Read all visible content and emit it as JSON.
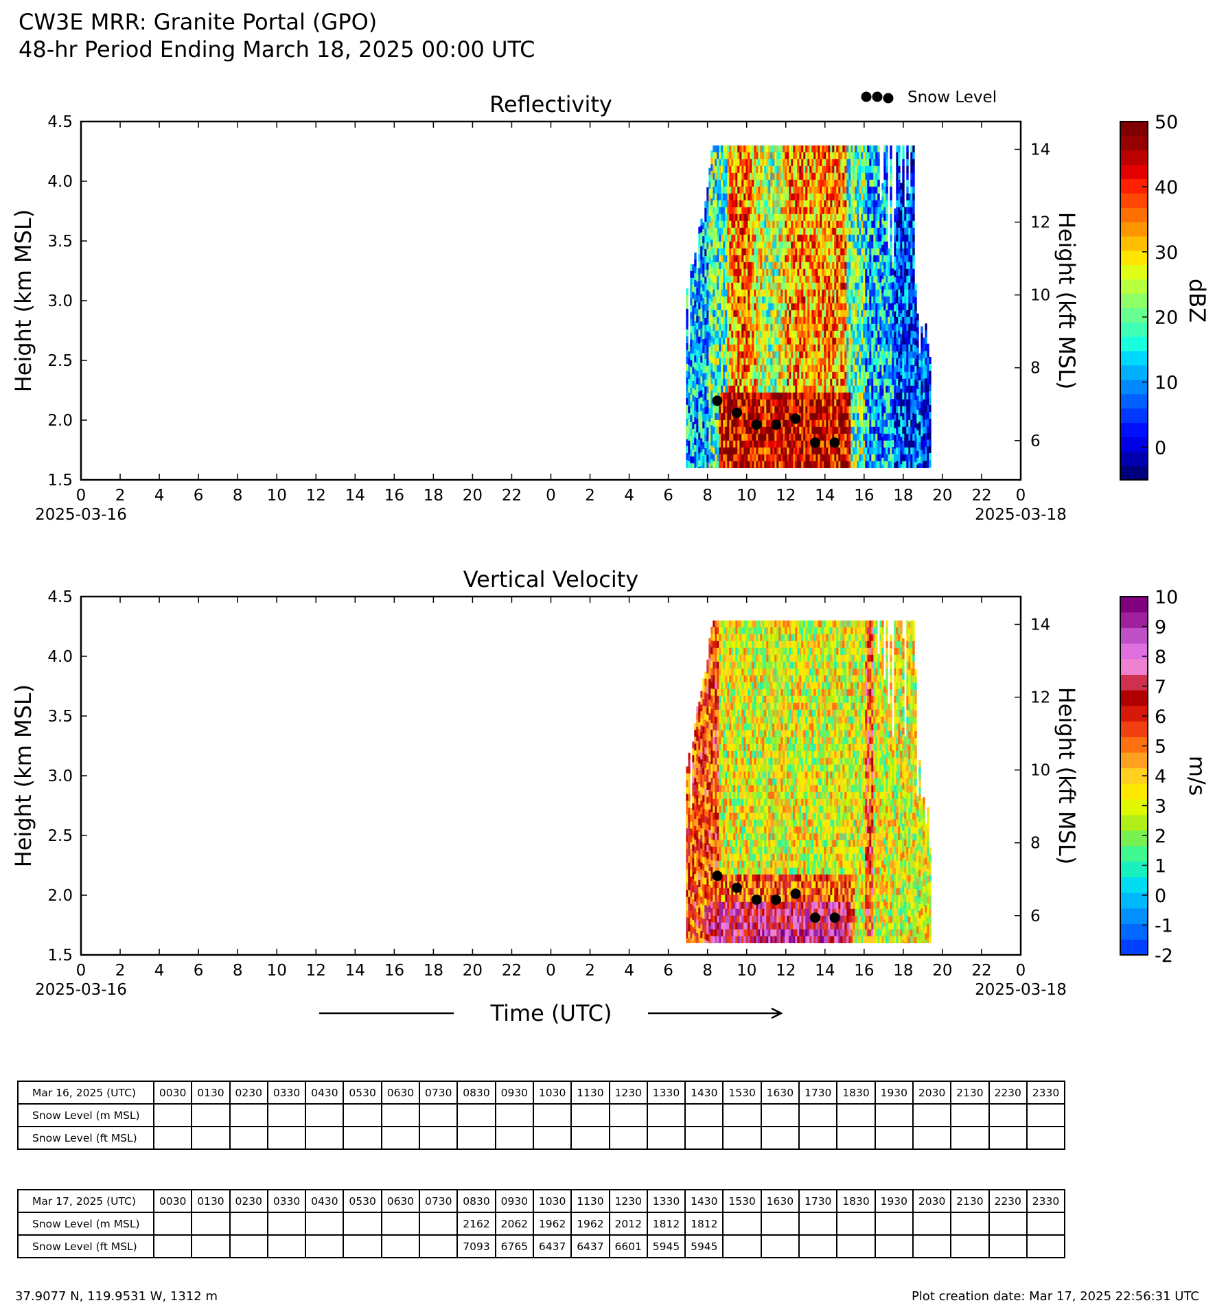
{
  "figure": {
    "title_line1": "CW3E MRR: Granite Portal (GPO)",
    "title_line2": "48-hr Period Ending March 18, 2025 00:00 UTC",
    "x_label": "Time (UTC)"
  },
  "chart_data": [
    {
      "type": "heatmap",
      "title": "Reflectivity",
      "xlabel": "",
      "ylabel": "Height (km MSL)",
      "ylabel_right": "Height (kft MSL)",
      "xlim": [
        0,
        48
      ],
      "ylim": [
        1.5,
        4.5
      ],
      "y_ticks": [
        "1.5",
        "2.0",
        "2.5",
        "3.0",
        "3.5",
        "4.0",
        "4.5"
      ],
      "y_right_ticks": [
        "6",
        "8",
        "10",
        "12",
        "14"
      ],
      "x_ticks": [
        "0",
        "2",
        "4",
        "6",
        "8",
        "10",
        "12",
        "14",
        "16",
        "18",
        "20",
        "22",
        "0",
        "2",
        "4",
        "6",
        "8",
        "10",
        "12",
        "14",
        "16",
        "18",
        "20",
        "22",
        "0"
      ],
      "x_date_start": "2025-03-16",
      "x_date_end": "2025-03-18",
      "colorbar_label": "dBZ",
      "colorbar_range": [
        -5,
        50
      ],
      "colorbar_ticks": [
        "0",
        "10",
        "20",
        "30",
        "40",
        "50"
      ],
      "colors": [
        "#00007f",
        "#0000b2",
        "#0000e5",
        "#0010ff",
        "#0038ff",
        "#0060ff",
        "#0088ff",
        "#00b0ff",
        "#00d8ff",
        "#17ffdf",
        "#3fffb7",
        "#67ff8f",
        "#8fff67",
        "#b7ff3f",
        "#dfff17",
        "#ffe500",
        "#ffbe00",
        "#ff9600",
        "#ff6f00",
        "#ff4700",
        "#ff2000",
        "#e50000",
        "#bd0000",
        "#960000",
        "#7f0000"
      ],
      "data_extent": {
        "x_start_hours": 30.9,
        "x_end_hours": 43.4,
        "y_top_km": 4.3,
        "y_bottom_km": 1.6
      },
      "legend": {
        "label": "Snow Level",
        "position": "top-right"
      },
      "snow_level": {
        "hours": [
          32.5,
          33.5,
          34.5,
          35.5,
          36.5,
          37.5,
          38.5
        ],
        "km": [
          2.162,
          2.062,
          1.962,
          1.962,
          2.012,
          1.812,
          1.812
        ]
      }
    },
    {
      "type": "heatmap",
      "title": "Vertical Velocity",
      "xlabel": "Time (UTC)",
      "ylabel": "Height (km MSL)",
      "ylabel_right": "Height (kft MSL)",
      "xlim": [
        0,
        48
      ],
      "ylim": [
        1.5,
        4.5
      ],
      "y_ticks": [
        "1.5",
        "2.0",
        "2.5",
        "3.0",
        "3.5",
        "4.0",
        "4.5"
      ],
      "y_right_ticks": [
        "6",
        "8",
        "10",
        "12",
        "14"
      ],
      "x_ticks": [
        "0",
        "2",
        "4",
        "6",
        "8",
        "10",
        "12",
        "14",
        "16",
        "18",
        "20",
        "22",
        "0",
        "2",
        "4",
        "6",
        "8",
        "10",
        "12",
        "14",
        "16",
        "18",
        "20",
        "22",
        "0"
      ],
      "x_date_start": "2025-03-16",
      "x_date_end": "2025-03-18",
      "colorbar_label": "m/s",
      "colorbar_range": [
        -2,
        10
      ],
      "colorbar_ticks": [
        "-2",
        "-1",
        "0",
        "1",
        "2",
        "3",
        "4",
        "5",
        "6",
        "7",
        "8",
        "9",
        "10"
      ],
      "colors": [
        "#0040ff",
        "#0068ff",
        "#0090ff",
        "#00b8ff",
        "#00dcf0",
        "#18f0c0",
        "#40f890",
        "#78f050",
        "#b0f018",
        "#e0f800",
        "#ffe800",
        "#ffd020",
        "#ffa020",
        "#ff7010",
        "#f04010",
        "#d81808",
        "#b00000",
        "#d03050",
        "#f080d0",
        "#e070e0",
        "#c050c8",
        "#a020a0",
        "#800080"
      ],
      "data_extent": {
        "x_start_hours": 30.9,
        "x_end_hours": 43.4,
        "y_top_km": 4.3,
        "y_bottom_km": 1.6
      },
      "snow_level": {
        "hours": [
          32.5,
          33.5,
          34.5,
          35.5,
          36.5,
          37.5,
          38.5
        ],
        "km": [
          2.162,
          2.062,
          1.962,
          1.962,
          2.012,
          1.812,
          1.812
        ]
      }
    }
  ],
  "tables": [
    {
      "date_label": "Mar 16, 2025 (UTC)",
      "times": [
        "0030",
        "0130",
        "0230",
        "0330",
        "0430",
        "0530",
        "0630",
        "0730",
        "0830",
        "0930",
        "1030",
        "1130",
        "1230",
        "1330",
        "1430",
        "1530",
        "1630",
        "1730",
        "1830",
        "1930",
        "2030",
        "2130",
        "2230",
        "2330"
      ],
      "row_m_label": "Snow Level (m MSL)",
      "row_ft_label": "Snow Level (ft MSL)",
      "m_values": [
        "",
        "",
        "",
        "",
        "",
        "",
        "",
        "",
        "",
        "",
        "",
        "",
        "",
        "",
        "",
        "",
        "",
        "",
        "",
        "",
        "",
        "",
        "",
        ""
      ],
      "ft_values": [
        "",
        "",
        "",
        "",
        "",
        "",
        "",
        "",
        "",
        "",
        "",
        "",
        "",
        "",
        "",
        "",
        "",
        "",
        "",
        "",
        "",
        "",
        "",
        ""
      ]
    },
    {
      "date_label": "Mar 17, 2025 (UTC)",
      "times": [
        "0030",
        "0130",
        "0230",
        "0330",
        "0430",
        "0530",
        "0630",
        "0730",
        "0830",
        "0930",
        "1030",
        "1130",
        "1230",
        "1330",
        "1430",
        "1530",
        "1630",
        "1730",
        "1830",
        "1930",
        "2030",
        "2130",
        "2230",
        "2330"
      ],
      "row_m_label": "Snow Level (m MSL)",
      "row_ft_label": "Snow Level (ft MSL)",
      "m_values": [
        "",
        "",
        "",
        "",
        "",
        "",
        "",
        "",
        "2162",
        "2062",
        "1962",
        "1962",
        "2012",
        "1812",
        "1812",
        "",
        "",
        "",
        "",
        "",
        "",
        "",
        "",
        ""
      ],
      "ft_values": [
        "",
        "",
        "",
        "",
        "",
        "",
        "",
        "",
        "7093",
        "6765",
        "6437",
        "6437",
        "6601",
        "5945",
        "5945",
        "",
        "",
        "",
        "",
        "",
        "",
        "",
        "",
        ""
      ]
    }
  ],
  "footer": {
    "location": "37.9077 N, 119.9531 W, 1312 m",
    "creation_date": "Plot creation date: Mar 17, 2025 22:56:31 UTC"
  }
}
